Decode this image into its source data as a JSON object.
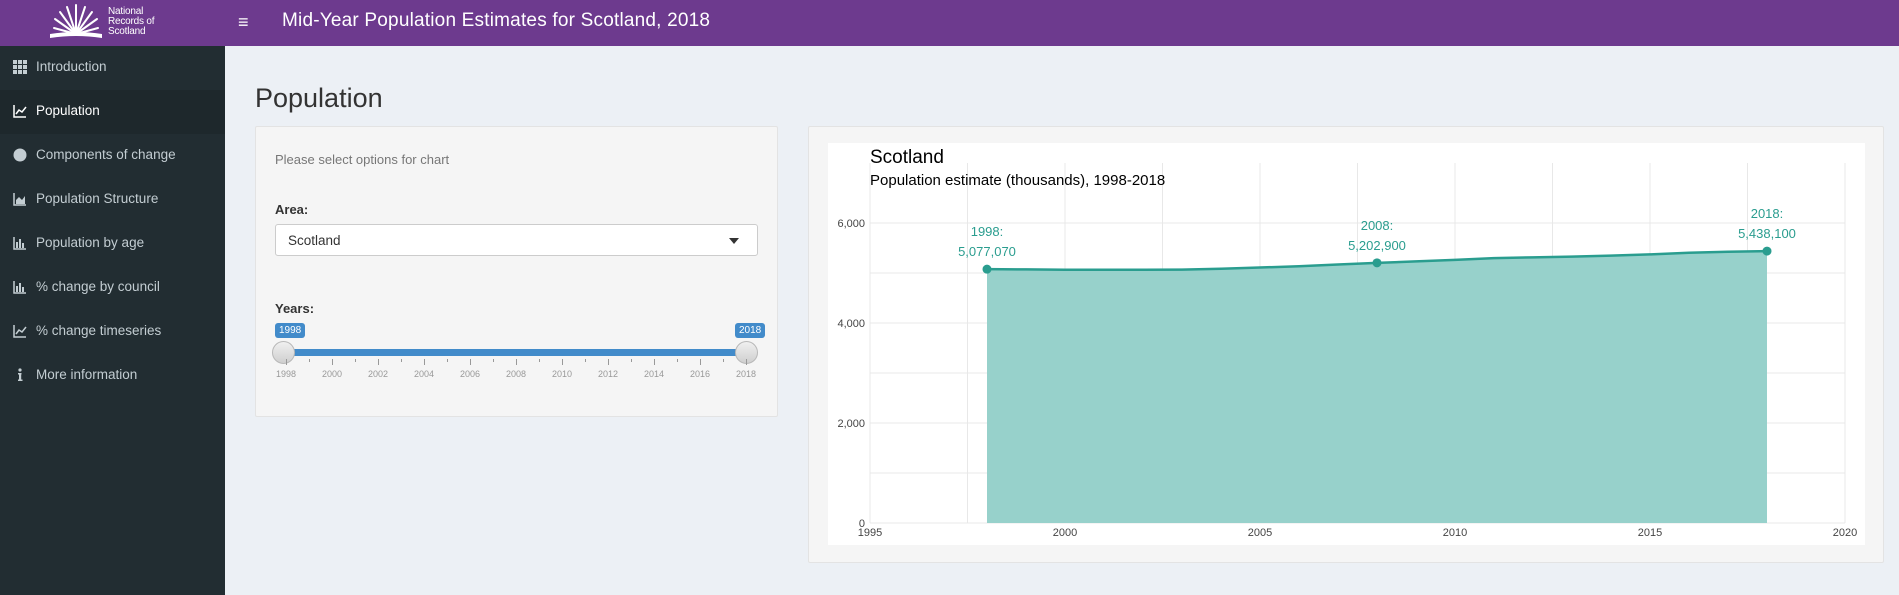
{
  "header": {
    "logo_lines": [
      "National",
      "Records of",
      "Scotland"
    ],
    "menu_icon": "hamburger-icon",
    "title": "Mid-Year Population Estimates for Scotland, 2018"
  },
  "sidebar": {
    "items": [
      {
        "label": "Introduction",
        "icon": "grid-icon",
        "active": false
      },
      {
        "label": "Population",
        "icon": "line-chart-icon",
        "active": true
      },
      {
        "label": "Components of change",
        "icon": "pie-chart-icon",
        "active": false
      },
      {
        "label": "Population Structure",
        "icon": "area-chart-icon",
        "active": false
      },
      {
        "label": "Population by age",
        "icon": "bar-chart-icon",
        "active": false
      },
      {
        "label": "% change by council",
        "icon": "bar-chart-icon",
        "active": false
      },
      {
        "label": "% change timeseries",
        "icon": "line-chart-icon",
        "active": false
      },
      {
        "label": "More information",
        "icon": "info-icon",
        "active": false
      }
    ]
  },
  "main": {
    "title": "Population",
    "controls": {
      "hint": "Please select options for chart",
      "area_label": "Area:",
      "area_value": "Scotland",
      "years_label": "Years:",
      "years_min_badge": "1998",
      "years_max_badge": "2018",
      "slider_ticks": [
        "1998",
        "2000",
        "2002",
        "2004",
        "2006",
        "2008",
        "2010",
        "2012",
        "2014",
        "2016",
        "2018"
      ]
    }
  },
  "colors": {
    "header_bg": "#6d3a8e",
    "sidebar_bg": "#222d32",
    "accent_blue": "#428bca",
    "chart_line": "#2a9d8f",
    "chart_fill": "#97d1cb"
  },
  "chart_data": {
    "type": "area",
    "title": "Scotland",
    "subtitle": "Population estimate (thousands), 1998-2018",
    "x": [
      1998,
      1999,
      2000,
      2001,
      2002,
      2003,
      2004,
      2005,
      2006,
      2007,
      2008,
      2009,
      2010,
      2011,
      2012,
      2013,
      2014,
      2015,
      2016,
      2017,
      2018
    ],
    "y": [
      5077.07,
      5072,
      5063,
      5064,
      5066,
      5068,
      5084,
      5110,
      5133,
      5170,
      5202.9,
      5231,
      5262,
      5299,
      5313,
      5327,
      5347,
      5373,
      5404,
      5424,
      5438.1
    ],
    "xlim": [
      1995,
      2020
    ],
    "ylim": [
      0,
      6000
    ],
    "xticks": [
      "1995",
      "2000",
      "2005",
      "2010",
      "2015",
      "2020"
    ],
    "yticks": [
      "0",
      "2,000",
      "4,000",
      "6,000"
    ],
    "annotations": [
      {
        "x": 1998,
        "y": 5077.07,
        "year": "1998:",
        "value": "5,077,070"
      },
      {
        "x": 2008,
        "y": 5202.9,
        "year": "2008:",
        "value": "5,202,900"
      },
      {
        "x": 2018,
        "y": 5438.1,
        "year": "2018:",
        "value": "5,438,100"
      }
    ],
    "grid": true,
    "legend": "none"
  }
}
